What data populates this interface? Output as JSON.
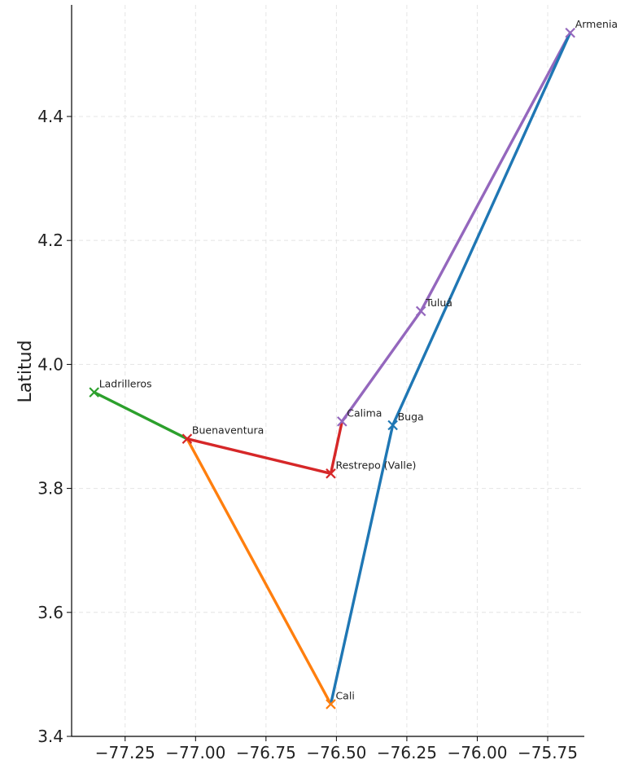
{
  "chart_data": {
    "type": "line",
    "title": "",
    "xlabel": "",
    "ylabel": "Latitud",
    "xlim": [
      -77.44,
      -75.62
    ],
    "ylim": [
      3.4,
      4.58
    ],
    "xticks": [
      -77.25,
      -77.0,
      -76.75,
      -76.5,
      -76.25,
      -76.0,
      -75.75
    ],
    "xtick_labels": [
      "−77.25",
      "−77.00",
      "−76.75",
      "−76.50",
      "−76.25",
      "−76.00",
      "−75.75"
    ],
    "yticks": [
      3.4,
      3.6,
      3.8,
      4.0,
      4.2,
      4.4
    ],
    "ytick_labels": [
      "3.4",
      "3.6",
      "3.8",
      "4.0",
      "4.2",
      "4.4"
    ],
    "grid": true,
    "points": [
      {
        "name": "Ladrilleros",
        "x": -77.36,
        "y": 3.955
      },
      {
        "name": "Buenaventura",
        "x": -77.03,
        "y": 3.88
      },
      {
        "name": "Cali",
        "x": -76.52,
        "y": 3.452
      },
      {
        "name": "Restrepo (Valle)",
        "x": -76.52,
        "y": 3.824
      },
      {
        "name": "Calima",
        "x": -76.48,
        "y": 3.908
      },
      {
        "name": "Buga",
        "x": -76.3,
        "y": 3.902
      },
      {
        "name": "Tuluá",
        "x": -76.2,
        "y": 4.086
      },
      {
        "name": "Armenia",
        "x": -75.67,
        "y": 4.535
      }
    ],
    "series": [
      {
        "color": "#2ca02c",
        "path": [
          [
            -77.36,
            3.955
          ],
          [
            -77.03,
            3.88
          ]
        ]
      },
      {
        "color": "#ff7f0e",
        "path": [
          [
            -77.03,
            3.88
          ],
          [
            -76.52,
            3.452
          ]
        ]
      },
      {
        "color": "#d62728",
        "path": [
          [
            -77.03,
            3.88
          ],
          [
            -76.52,
            3.824
          ],
          [
            -76.48,
            3.908
          ]
        ]
      },
      {
        "color": "#9467bd",
        "path": [
          [
            -76.48,
            3.908
          ],
          [
            -76.2,
            4.086
          ],
          [
            -75.67,
            4.535
          ]
        ]
      },
      {
        "color": "#1f77b4",
        "path": [
          [
            -76.52,
            3.452
          ],
          [
            -76.3,
            3.902
          ],
          [
            -75.67,
            4.535
          ]
        ]
      }
    ],
    "markers": [
      {
        "point": "Ladrilleros",
        "color": "#2ca02c"
      },
      {
        "point": "Buenaventura",
        "color": "#d62728"
      },
      {
        "point": "Cali",
        "color": "#ff7f0e"
      },
      {
        "point": "Restrepo (Valle)",
        "color": "#d62728"
      },
      {
        "point": "Calima",
        "color": "#9467bd"
      },
      {
        "point": "Buga",
        "color": "#1f77b4"
      },
      {
        "point": "Tuluá",
        "color": "#9467bd"
      },
      {
        "point": "Armenia",
        "color": "#9467bd"
      }
    ]
  }
}
